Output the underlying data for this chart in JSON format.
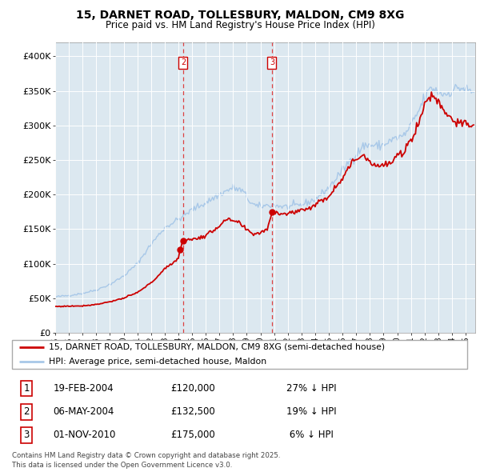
{
  "title": "15, DARNET ROAD, TOLLESBURY, MALDON, CM9 8XG",
  "subtitle": "Price paid vs. HM Land Registry's House Price Index (HPI)",
  "hpi_color": "#a8c8e8",
  "price_color": "#cc0000",
  "background_color": "#dce8f0",
  "plot_bg_color": "#dce8f0",
  "legend_label_price": "15, DARNET ROAD, TOLLESBURY, MALDON, CM9 8XG (semi-detached house)",
  "legend_label_hpi": "HPI: Average price, semi-detached house, Maldon",
  "transactions": [
    {
      "num": "1",
      "date": "19-FEB-2004",
      "date_num": 2004.13,
      "price": 120000,
      "note": "27% ↓ HPI"
    },
    {
      "num": "2",
      "date": "06-MAY-2004",
      "date_num": 2004.35,
      "price": 132500,
      "note": "19% ↓ HPI"
    },
    {
      "num": "3",
      "date": "01-NOV-2010",
      "date_num": 2010.84,
      "price": 175000,
      "note": "6% ↓ HPI"
    }
  ],
  "vline_dates": [
    2004.35,
    2010.84
  ],
  "vline_labels": [
    "2",
    "3"
  ],
  "ylim": [
    0,
    420000
  ],
  "yticks": [
    0,
    50000,
    100000,
    150000,
    200000,
    250000,
    300000,
    350000,
    400000
  ],
  "ytick_labels": [
    "£0",
    "£50K",
    "£100K",
    "£150K",
    "£200K",
    "£250K",
    "£300K",
    "£350K",
    "£400K"
  ],
  "xlim_start": 1995.0,
  "xlim_end": 2025.7,
  "footer": "Contains HM Land Registry data © Crown copyright and database right 2025.\nThis data is licensed under the Open Government Licence v3.0."
}
